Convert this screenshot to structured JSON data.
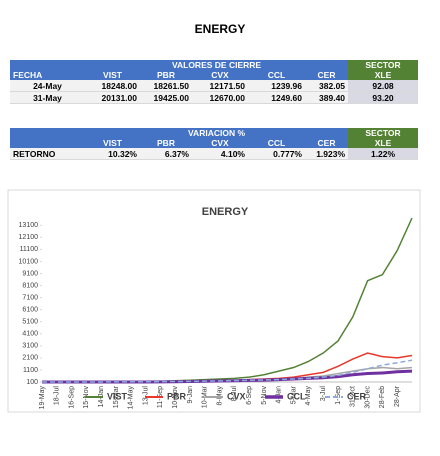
{
  "title": "ENERGY",
  "table1": {
    "group_header": "VALORES DE CIERRE",
    "sector_header": "SECTOR",
    "columns": [
      "FECHA",
      "VIST",
      "PBR",
      "CVX",
      "CCL",
      "CER",
      "XLE"
    ],
    "rows": [
      [
        "24-May",
        "18248.00",
        "18261.50",
        "12171.50",
        "1239.96",
        "382.05",
        "92.08"
      ],
      [
        "31-May",
        "20131.00",
        "19425.00",
        "12670.00",
        "1249.60",
        "389.40",
        "93.20"
      ]
    ]
  },
  "table2": {
    "group_header": "VARIACION %",
    "sector_header": "SECTOR",
    "columns": [
      null,
      "VIST",
      "PBR",
      "CVX",
      "CCL",
      "CER",
      "XLE"
    ],
    "rows": [
      [
        "RETORNO",
        "10.32%",
        "6.37%",
        "4.10%",
        "0.777%",
        "1.923%",
        "1.22%"
      ]
    ]
  },
  "chart_data": {
    "type": "line",
    "title": "ENERGY",
    "categories": [
      "19-May",
      "18-Jul",
      "16-Sep",
      "15-Nov",
      "14-Jan",
      "15-Mar",
      "14-May",
      "13-Jul",
      "11-Sep",
      "10-Nov",
      "9-Jan",
      "10-Mar",
      "8-May",
      "8-Jul",
      "6-Sep",
      "5-Nov",
      "4-Jan",
      "5-Mar",
      "4-May",
      "3-Jul",
      "1-Sep",
      "31-Oct",
      "30-Dec",
      "28-Feb",
      "28-Apr",
      null
    ],
    "ylim": [
      100,
      13700
    ],
    "yticks": [
      100,
      1100,
      2100,
      3100,
      4100,
      5100,
      6100,
      7100,
      8100,
      9100,
      10100,
      11100,
      12100,
      13100
    ],
    "grid": false,
    "series": [
      {
        "name": "VIST",
        "color": "#548235",
        "line_width": 1.5,
        "dashed": false,
        "values": [
          100,
          100,
          110,
          105,
          120,
          110,
          100,
          120,
          150,
          200,
          250,
          300,
          350,
          400,
          500,
          700,
          1000,
          1300,
          1800,
          2500,
          3500,
          5500,
          8500,
          9000,
          11000,
          13700
        ]
      },
      {
        "name": "PBR",
        "color": "#e8382c",
        "line_width": 1.5,
        "dashed": false,
        "values": [
          100,
          100,
          100,
          100,
          100,
          100,
          100,
          110,
          130,
          150,
          180,
          200,
          220,
          250,
          300,
          350,
          400,
          500,
          700,
          900,
          1400,
          2000,
          2500,
          2200,
          2100,
          2300
        ]
      },
      {
        "name": "CVX",
        "color": "#a5a5a5",
        "line_width": 1.5,
        "dashed": false,
        "values": [
          100,
          100,
          100,
          100,
          100,
          100,
          100,
          100,
          110,
          130,
          150,
          170,
          200,
          220,
          250,
          300,
          350,
          400,
          500,
          600,
          800,
          1000,
          1200,
          1300,
          1200,
          1300
        ]
      },
      {
        "name": "CCL",
        "color": "#7030a0",
        "line_width": 3,
        "dashed": false,
        "values": [
          100,
          100,
          100,
          100,
          100,
          100,
          100,
          100,
          110,
          120,
          140,
          160,
          180,
          200,
          230,
          260,
          300,
          350,
          400,
          450,
          550,
          700,
          800,
          850,
          950,
          1000
        ]
      },
      {
        "name": "CER",
        "color": "#8eaadb",
        "line_width": 1.5,
        "dashed": true,
        "values": [
          100,
          100,
          100,
          100,
          105,
          110,
          115,
          120,
          130,
          140,
          150,
          170,
          190,
          210,
          240,
          270,
          300,
          350,
          400,
          500,
          650,
          900,
          1200,
          1500,
          1700,
          1900
        ]
      }
    ]
  }
}
